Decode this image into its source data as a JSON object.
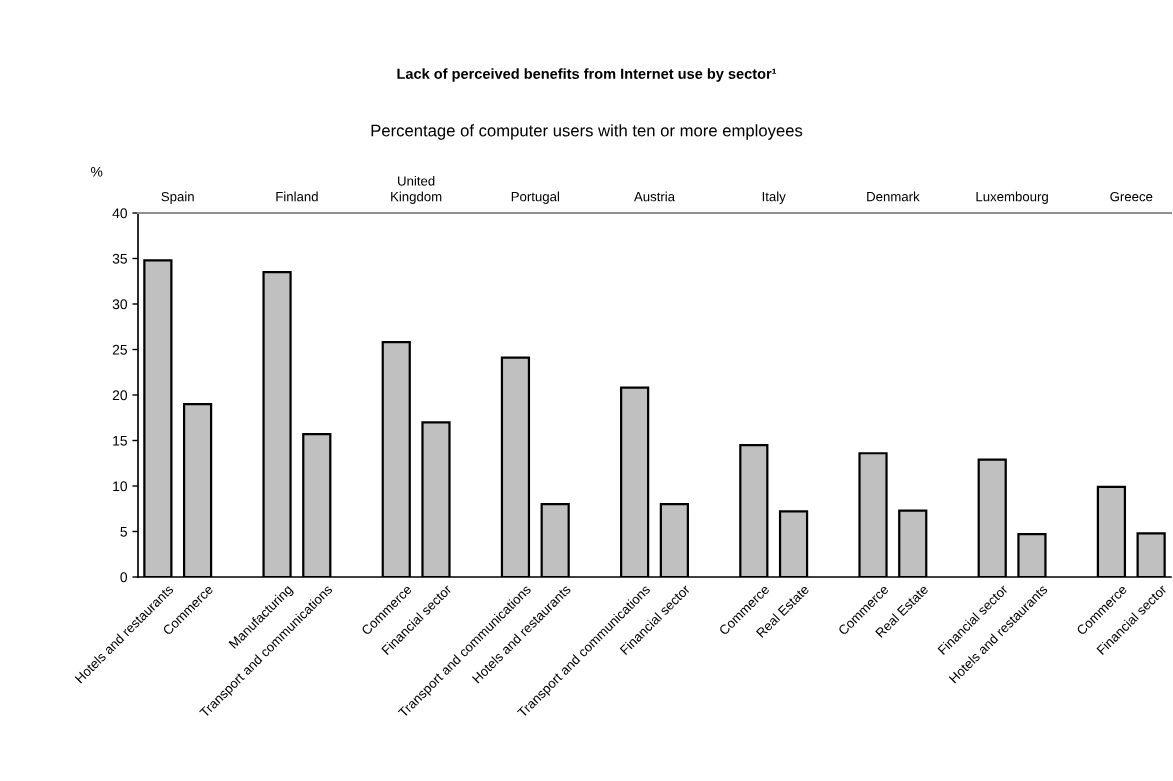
{
  "chart_data": {
    "type": "bar",
    "title": "Lack of perceived benefits from Internet use by sector¹",
    "subtitle": "Percentage of computer users with ten or more employees",
    "ylabel": "%",
    "annotations": [
      "Spain",
      "Finland",
      "United\nKingdom",
      "Portugal",
      "Austria",
      "Italy",
      "Denmark",
      "Luxembourg",
      "Greece"
    ],
    "categories": [
      "Hotels and restaurants",
      "Commerce",
      null,
      "Manufacturing",
      "Transport and communications",
      null,
      "Commerce",
      "Financial sector",
      null,
      "Transport and communications",
      "Hotels and restaurants",
      null,
      "Transport and communications",
      "Financial sector",
      null,
      "Commerce",
      "Real Estate",
      null,
      "Commerce",
      "Real Estate",
      null,
      "Financial sector",
      "Hotels and restaurants",
      null,
      "Commerce",
      "Financial sector"
    ],
    "values": [
      34.8,
      19.0,
      null,
      33.5,
      15.7,
      null,
      25.8,
      17.0,
      null,
      24.1,
      8.0,
      null,
      20.8,
      8.0,
      null,
      14.5,
      7.2,
      null,
      13.6,
      7.3,
      null,
      12.9,
      4.7,
      null,
      9.9,
      4.8
    ],
    "color": "#c0c0c0",
    "ylim": [
      0,
      40
    ],
    "yticks": [
      0,
      5,
      10,
      15,
      20,
      25,
      30,
      35,
      40
    ]
  }
}
